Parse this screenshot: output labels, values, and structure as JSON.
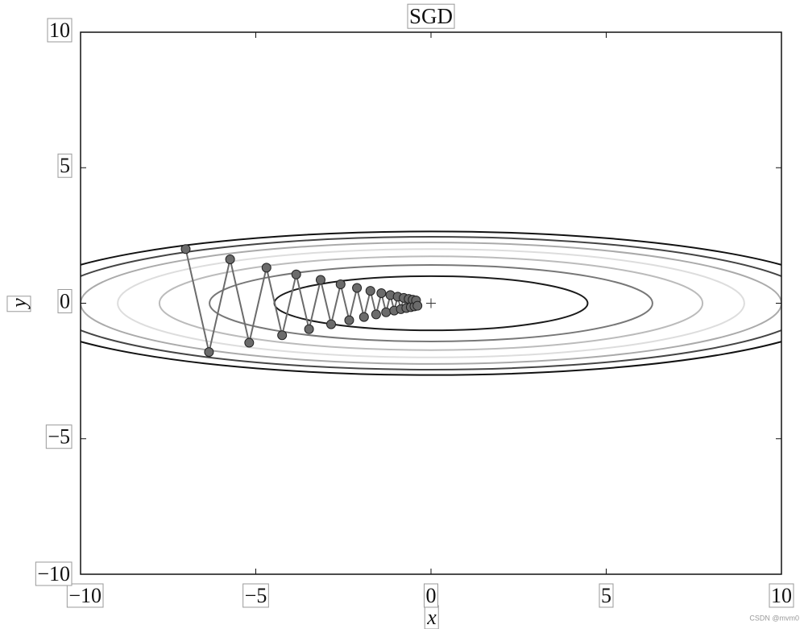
{
  "chart_data": {
    "type": "contour",
    "title": "SGD",
    "x_label": "x",
    "y_label": "y",
    "xlim": [
      -10,
      10
    ],
    "ylim": [
      -10,
      10
    ],
    "xticks": [
      {
        "value": -10,
        "label": "−10"
      },
      {
        "value": -5,
        "label": "−5"
      },
      0,
      5,
      10
    ],
    "yticks": [
      {
        "value": -10,
        "label": "−10"
      },
      {
        "value": -5,
        "label": "−5"
      },
      0,
      5,
      10
    ],
    "contours": [
      {
        "rx": 4.47,
        "ry": 1.0,
        "color": "#1a1a1a"
      },
      {
        "rx": 6.32,
        "ry": 1.41,
        "color": "#777777"
      },
      {
        "rx": 7.75,
        "ry": 1.73,
        "color": "#bbbbbb"
      },
      {
        "rx": 8.94,
        "ry": 2.0,
        "color": "#dddddd"
      },
      {
        "rx": 10.0,
        "ry": 2.24,
        "color": "#aaaaaa"
      },
      {
        "rx": 10.95,
        "ry": 2.45,
        "color": "#444444"
      },
      {
        "rx": 11.83,
        "ry": 2.65,
        "color": "#111111"
      }
    ],
    "path": {
      "color": "#6b6b6b",
      "x": [
        -7,
        -6.335,
        -5.733,
        -5.188,
        -4.695,
        -4.249,
        -3.846,
        -3.48,
        -3.15,
        -2.85,
        -2.58,
        -2.334,
        -2.113,
        -1.912,
        -1.73,
        -1.566,
        -1.417,
        -1.282,
        -1.16,
        -1.05,
        -0.95,
        -0.86,
        -0.778,
        -0.704,
        -0.637,
        -0.577,
        -0.522,
        -0.472,
        -0.427,
        -0.387
      ],
      "y": [
        2,
        -1.8,
        1.62,
        -1.458,
        1.312,
        -1.181,
        1.063,
        -0.957,
        0.861,
        -0.775,
        0.697,
        -0.628,
        0.565,
        -0.508,
        0.458,
        -0.412,
        0.371,
        -0.334,
        0.3,
        -0.27,
        0.243,
        -0.219,
        0.197,
        -0.177,
        0.16,
        -0.144,
        0.129,
        -0.116,
        0.105,
        -0.094
      ]
    },
    "optimum": {
      "x": 0,
      "y": 0
    },
    "watermark": "CSDN @mvm0"
  }
}
